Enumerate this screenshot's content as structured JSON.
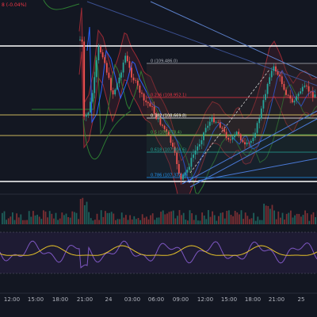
{
  "top_left_label": "8 (-0.04%)",
  "fib_labels": [
    {
      "text": "0 (109,486.0)",
      "color": "#b2b5be"
    },
    {
      "text": "0.236 (108,952.1)",
      "color": "#f23645"
    },
    {
      "text": "0.382 (108,669.8)",
      "color": "#ffffff"
    },
    {
      "text": "0.5 (108,378.4)",
      "color": "#4caf50"
    },
    {
      "text": "0.618 (107,804.6)",
      "color": "#26a69a"
    },
    {
      "text": "0.786 (107,372.6)",
      "color": "#2196f3"
    }
  ],
  "x_axis": [
    "12:00",
    "15:00",
    "18:00",
    "21:00",
    "24",
    "03:00",
    "06:00",
    "09:00",
    "12:00",
    "15:00",
    "18:00",
    "21:00",
    "25"
  ],
  "colors": {
    "background": "#131722",
    "up_candle": "#26a69a",
    "down_candle": "#ef5350",
    "bollinger": "#2962ff",
    "bollinger_outer": "#b22833",
    "indicator_fill": "#2a2543",
    "oscillator_main": "#7e57c2",
    "oscillator_signal": "#e6c229"
  }
}
